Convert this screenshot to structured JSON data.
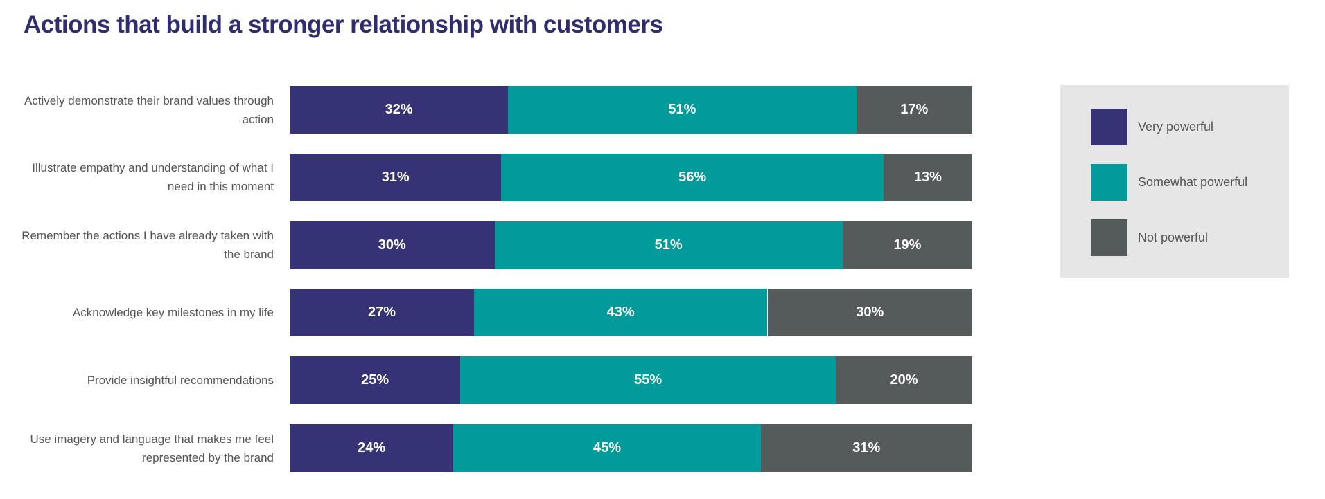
{
  "chart_data": {
    "type": "bar",
    "orientation": "horizontal",
    "stacked": true,
    "title": "Actions that build a stronger relationship with customers",
    "categories": [
      "Actively demonstrate their brand values through action",
      "Illustrate empathy and understanding of what I need in this moment",
      "Remember the actions I have already taken with the brand",
      "Acknowledge key milestones in my life",
      "Provide insightful recommendations",
      "Use imagery and language that makes me feel represented by the brand"
    ],
    "series": [
      {
        "name": "Very powerful",
        "color": "#353275",
        "values": [
          32,
          31,
          30,
          27,
          25,
          24
        ]
      },
      {
        "name": "Somewhat powerful",
        "color": "#009b9a",
        "values": [
          51,
          56,
          51,
          43,
          55,
          45
        ]
      },
      {
        "name": "Not powerful",
        "color": "#555a5a",
        "values": [
          17,
          13,
          19,
          30,
          20,
          31
        ]
      }
    ],
    "unit": "%",
    "xlim": [
      0,
      100
    ],
    "grid": false,
    "legend_position": "right"
  }
}
